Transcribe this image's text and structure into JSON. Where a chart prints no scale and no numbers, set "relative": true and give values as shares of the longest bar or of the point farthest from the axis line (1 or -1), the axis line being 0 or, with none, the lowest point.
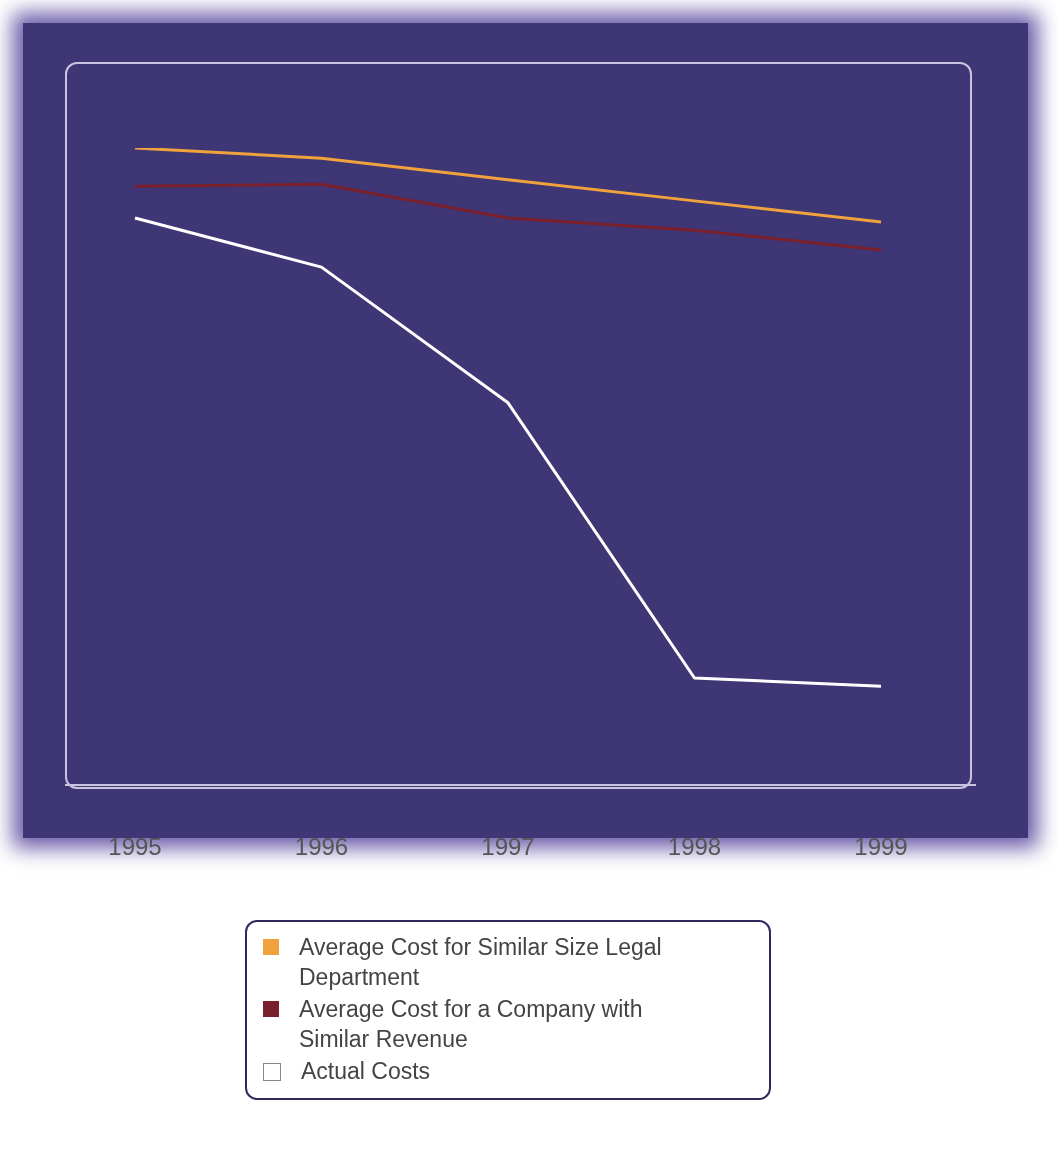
{
  "chart_data": {
    "type": "line",
    "relative": true,
    "categories": [
      "1995",
      "1996",
      "1997",
      "1998",
      "1999"
    ],
    "series": [
      {
        "name": "Average Cost for Similar Size Legal Department",
        "color": "#f2a23c",
        "values": [
          1.0,
          0.984,
          0.95,
          0.917,
          0.884
        ]
      },
      {
        "name": "Average Cost for a Company with Similar Revenue",
        "color": "#7a1f2c",
        "values": [
          0.94,
          0.943,
          0.89,
          0.871,
          0.84
        ]
      },
      {
        "name": "Actual Costs",
        "color": "#ffffff",
        "values": [
          0.89,
          0.813,
          0.6,
          0.168,
          0.155
        ]
      }
    ],
    "legend": "bottom",
    "grid": false,
    "marker": "none",
    "line_style": "solid"
  }
}
